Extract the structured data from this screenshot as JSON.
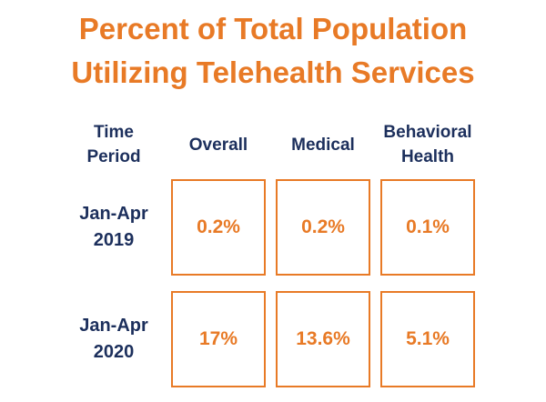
{
  "chart_data": {
    "type": "table",
    "title": [
      "Percent of Total Population",
      "Utilizing Telehealth Services"
    ],
    "header_first": [
      "Time",
      "Period"
    ],
    "columns": [
      [
        "Overall"
      ],
      [
        "Medical"
      ],
      [
        "Behavioral",
        "Health"
      ]
    ],
    "rows": [
      {
        "label": [
          "Jan-Apr",
          "2019"
        ],
        "values": [
          "0.2%",
          "0.2%",
          "0.1%"
        ]
      },
      {
        "label": [
          "Jan-Apr",
          "2020"
        ],
        "values": [
          "17%",
          "13.6%",
          "5.1%"
        ]
      }
    ],
    "colors": {
      "accent": "#e87a26",
      "text": "#1c2f5c"
    }
  }
}
